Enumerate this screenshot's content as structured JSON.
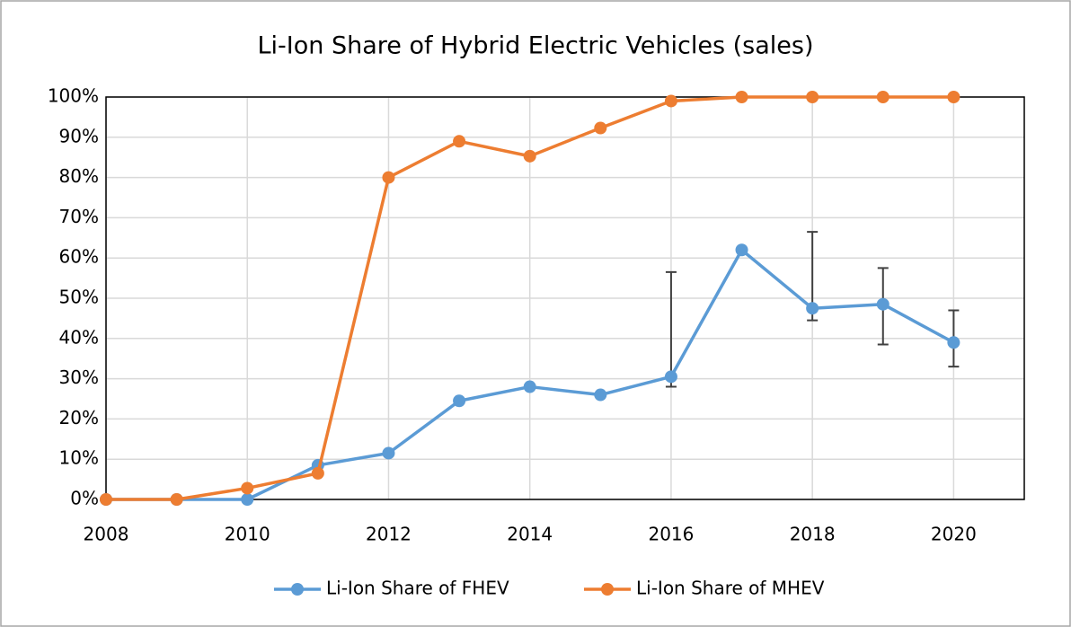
{
  "chart_data": {
    "type": "line",
    "title": "Li-Ion Share of Hybrid Electric Vehicles (sales)",
    "x": [
      2008,
      2009,
      2010,
      2011,
      2012,
      2013,
      2014,
      2015,
      2016,
      2017,
      2018,
      2019,
      2020
    ],
    "series": [
      {
        "name": "Li-Ion Share of FHEV",
        "color": "#5b9bd5",
        "values": [
          0,
          0,
          0,
          8.5,
          11.5,
          24.5,
          28,
          26,
          30.5,
          62,
          47.5,
          48.5,
          39
        ],
        "error_minus": [
          null,
          null,
          null,
          null,
          null,
          null,
          null,
          null,
          2.5,
          null,
          3,
          10,
          6
        ],
        "error_plus": [
          null,
          null,
          null,
          null,
          null,
          null,
          null,
          null,
          26,
          null,
          19,
          9,
          8
        ]
      },
      {
        "name": "Li-Ion Share of MHEV",
        "color": "#ed7d31",
        "values": [
          0,
          0,
          2.8,
          6.5,
          80,
          89,
          85.3,
          92.3,
          99,
          100,
          100,
          100,
          100
        ]
      }
    ],
    "xlim": [
      2008,
      2021
    ],
    "xticks": [
      2008,
      2010,
      2012,
      2014,
      2016,
      2018,
      2020
    ],
    "ylim": [
      0,
      100
    ],
    "yticks": [
      {
        "value": 0,
        "label": "0%"
      },
      {
        "value": 10,
        "label": "10%"
      },
      {
        "value": 20,
        "label": "20%"
      },
      {
        "value": 30,
        "label": "30%"
      },
      {
        "value": 40,
        "label": "40%"
      },
      {
        "value": 50,
        "label": "50%"
      },
      {
        "value": 60,
        "label": "60%"
      },
      {
        "value": 70,
        "label": "70%"
      },
      {
        "value": 80,
        "label": "80%"
      },
      {
        "value": 90,
        "label": "90%"
      },
      {
        "value": 100,
        "label": "100%"
      }
    ],
    "grid": true,
    "legend": "bottom"
  }
}
